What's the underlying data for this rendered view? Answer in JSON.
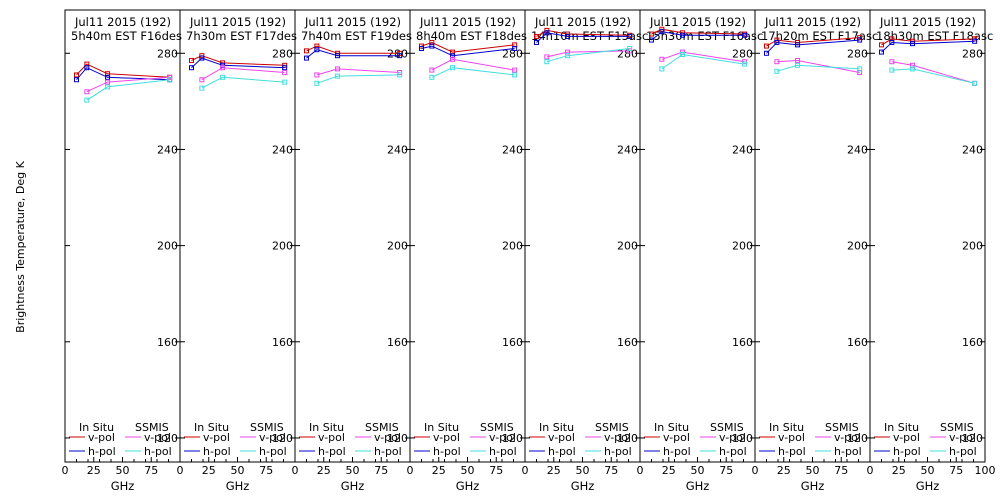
{
  "colors": {
    "insitu_v": "#cc0000",
    "insitu_h": "#0000cc",
    "ssmis_v": "#ee44ee",
    "ssmis_h": "#44dddd",
    "axis": "#000000"
  },
  "chart_data": {
    "type": "line",
    "ylabel": "Brightness Temperature, Deg K",
    "xlabel": "GHz",
    "ylim": [
      110,
      298
    ],
    "xlim": [
      0,
      100
    ],
    "yticks": [
      120,
      160,
      200,
      240,
      280
    ],
    "xticks": [
      0,
      25,
      50,
      75,
      100
    ],
    "xtick_labels": [
      "0",
      "25",
      "50",
      "75",
      "100"
    ],
    "xticks_minor": [
      10,
      20,
      30,
      40,
      60,
      70,
      80,
      90
    ],
    "legend": {
      "insitu_header": "In Situ",
      "ssmis_header": "SSMIS",
      "v_label": "v-pol",
      "h_label": "h-pol"
    },
    "panels": [
      {
        "title1": "Jul11 2015 (192)",
        "title2": "5h40m EST F16des",
        "insitu_v": [
          [
            10,
            271
          ],
          [
            19,
            275.5
          ],
          [
            37,
            271.5
          ],
          [
            91,
            270
          ]
        ],
        "insitu_h": [
          [
            10,
            269
          ],
          [
            19,
            274
          ],
          [
            37,
            270
          ],
          [
            91,
            269
          ]
        ],
        "ssmis_v": [
          [
            19,
            264
          ],
          [
            37,
            268
          ],
          [
            91,
            270
          ]
        ],
        "ssmis_h": [
          [
            19,
            260.5
          ],
          [
            37,
            266
          ],
          [
            91,
            269
          ]
        ]
      },
      {
        "title1": "Jul11 2015 (192)",
        "title2": "7h30m EST F17des",
        "insitu_v": [
          [
            10,
            277
          ],
          [
            19,
            279
          ],
          [
            37,
            276
          ],
          [
            91,
            275
          ]
        ],
        "insitu_h": [
          [
            10,
            274
          ],
          [
            19,
            278
          ],
          [
            37,
            275
          ],
          [
            91,
            274
          ]
        ],
        "ssmis_v": [
          [
            19,
            269
          ],
          [
            37,
            274
          ],
          [
            91,
            272
          ]
        ],
        "ssmis_h": [
          [
            19,
            265.5
          ],
          [
            37,
            270
          ],
          [
            91,
            268
          ]
        ]
      },
      {
        "title1": "Jul11 2015 (192)",
        "title2": "7h40m EST F19des",
        "insitu_v": [
          [
            10,
            281
          ],
          [
            19,
            283
          ],
          [
            37,
            280
          ],
          [
            91,
            280
          ]
        ],
        "insitu_h": [
          [
            10,
            278
          ],
          [
            19,
            281.5
          ],
          [
            37,
            279
          ],
          [
            91,
            279
          ]
        ],
        "ssmis_v": [
          [
            19,
            271
          ],
          [
            37,
            273.5
          ],
          [
            91,
            272
          ]
        ],
        "ssmis_h": [
          [
            19,
            267.5
          ],
          [
            37,
            270.5
          ],
          [
            91,
            271
          ]
        ]
      },
      {
        "title1": "Jul11 2015 (192)",
        "title2": "8h40m EST F18des",
        "insitu_v": [
          [
            10,
            283
          ],
          [
            19,
            284.5
          ],
          [
            37,
            280.5
          ],
          [
            91,
            283.5
          ]
        ],
        "insitu_h": [
          [
            10,
            282
          ],
          [
            19,
            283
          ],
          [
            37,
            279
          ],
          [
            91,
            282
          ]
        ],
        "ssmis_v": [
          [
            19,
            273
          ],
          [
            37,
            277.5
          ],
          [
            91,
            273
          ]
        ],
        "ssmis_h": [
          [
            19,
            270
          ],
          [
            37,
            274
          ],
          [
            91,
            271
          ]
        ]
      },
      {
        "title1": "Jul11 2015 (192)",
        "title2": "14h10m EST F15asc",
        "insitu_v": [
          [
            10,
            287
          ],
          [
            19,
            289.5
          ],
          [
            37,
            288
          ],
          [
            91,
            287.5
          ]
        ],
        "insitu_h": [
          [
            10,
            284.5
          ],
          [
            19,
            288.5
          ],
          [
            37,
            287
          ],
          [
            91,
            287
          ]
        ],
        "ssmis_v": [
          [
            19,
            278.5
          ],
          [
            37,
            280.5
          ],
          [
            91,
            281
          ]
        ],
        "ssmis_h": [
          [
            19,
            276.5
          ],
          [
            37,
            279
          ],
          [
            91,
            282
          ]
        ]
      },
      {
        "title1": "Jul11 2015 (192)",
        "title2": "15h30m EST F16asc",
        "insitu_v": [
          [
            10,
            288
          ],
          [
            19,
            290
          ],
          [
            37,
            288.5
          ],
          [
            91,
            288
          ]
        ],
        "insitu_h": [
          [
            10,
            285.5
          ],
          [
            19,
            289
          ],
          [
            37,
            287.5
          ],
          [
            91,
            287.5
          ]
        ],
        "ssmis_v": [
          [
            19,
            277.5
          ],
          [
            37,
            280.5
          ],
          [
            91,
            276.5
          ]
        ],
        "ssmis_h": [
          [
            19,
            273.5
          ],
          [
            37,
            279.5
          ],
          [
            91,
            275.5
          ]
        ]
      },
      {
        "title1": "Jul11 2015 (192)",
        "title2": "17h20m EST F17asc",
        "insitu_v": [
          [
            10,
            283
          ],
          [
            19,
            285.5
          ],
          [
            37,
            284.5
          ],
          [
            91,
            286.5
          ]
        ],
        "insitu_h": [
          [
            10,
            280
          ],
          [
            19,
            284.5
          ],
          [
            37,
            283.5
          ],
          [
            91,
            285.5
          ]
        ],
        "ssmis_v": [
          [
            19,
            276.5
          ],
          [
            37,
            277
          ],
          [
            91,
            272
          ]
        ],
        "ssmis_h": [
          [
            19,
            272.5
          ],
          [
            37,
            275
          ],
          [
            91,
            273.5
          ]
        ]
      },
      {
        "title1": "Jul11 2015 (192)",
        "title2": "18h30m EST F18asc",
        "insitu_v": [
          [
            10,
            283.5
          ],
          [
            19,
            286
          ],
          [
            37,
            285
          ],
          [
            91,
            286
          ]
        ],
        "insitu_h": [
          [
            10,
            280.5
          ],
          [
            19,
            284.5
          ],
          [
            37,
            284
          ],
          [
            91,
            285
          ]
        ],
        "ssmis_v": [
          [
            19,
            276.5
          ],
          [
            37,
            275
          ],
          [
            91,
            267.5
          ]
        ],
        "ssmis_h": [
          [
            19,
            273
          ],
          [
            37,
            273.5
          ],
          [
            91,
            267.5
          ]
        ]
      }
    ]
  }
}
